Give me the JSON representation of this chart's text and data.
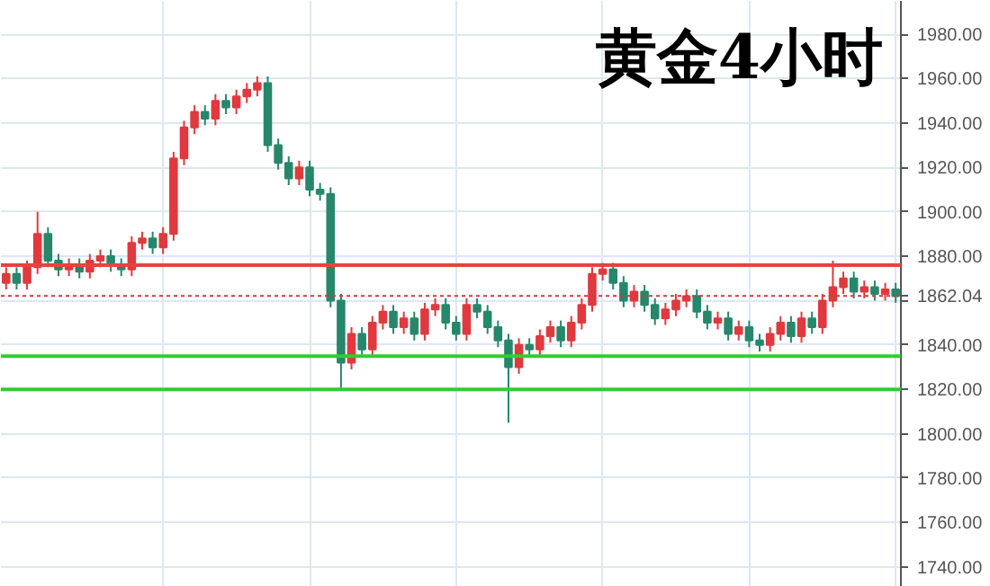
{
  "chart_data": {
    "type": "candlestick",
    "title": "黄金4小时",
    "categories": [
      null,
      null,
      null,
      null,
      null,
      null,
      null,
      null,
      null,
      null,
      null,
      null,
      null,
      null,
      null,
      null,
      null,
      null,
      null,
      null,
      null,
      null,
      null,
      null,
      null,
      null,
      null,
      null,
      null,
      null,
      null,
      null,
      null,
      null,
      null,
      null,
      null,
      null,
      null,
      null,
      null,
      null,
      null,
      null,
      null,
      null,
      null,
      null,
      null,
      null,
      null,
      null,
      null,
      null,
      null,
      null,
      null,
      null,
      null,
      null,
      null,
      null,
      null,
      null,
      null,
      null,
      null,
      null,
      null,
      null,
      null,
      null,
      null,
      null,
      null,
      null,
      null,
      null,
      null,
      null,
      null,
      null,
      null,
      null,
      null,
      null
    ],
    "ohlc": [
      [
        1868,
        1875,
        1865,
        1872
      ],
      [
        1872,
        1875,
        1865,
        1868
      ],
      [
        1868,
        1878,
        1865,
        1875
      ],
      [
        1875,
        1900,
        1872,
        1890
      ],
      [
        1890,
        1893,
        1875,
        1878
      ],
      [
        1878,
        1881,
        1871,
        1874
      ],
      [
        1874,
        1879,
        1871,
        1876
      ],
      [
        1876,
        1879,
        1870,
        1873
      ],
      [
        1873,
        1881,
        1870,
        1878
      ],
      [
        1878,
        1883,
        1875,
        1880
      ],
      [
        1880,
        1883,
        1873,
        1876
      ],
      [
        1876,
        1879,
        1871,
        1874
      ],
      [
        1874,
        1889,
        1871,
        1886
      ],
      [
        1886,
        1891,
        1883,
        1888
      ],
      [
        1888,
        1891,
        1881,
        1884
      ],
      [
        1884,
        1893,
        1881,
        1890
      ],
      [
        1890,
        1927,
        1887,
        1924
      ],
      [
        1924,
        1941,
        1921,
        1938
      ],
      [
        1938,
        1948,
        1935,
        1945
      ],
      [
        1945,
        1948,
        1939,
        1942
      ],
      [
        1942,
        1953,
        1939,
        1950
      ],
      [
        1950,
        1953,
        1944,
        1947
      ],
      [
        1947,
        1955,
        1944,
        1952
      ],
      [
        1952,
        1958,
        1949,
        1955
      ],
      [
        1955,
        1961,
        1952,
        1958
      ],
      [
        1958,
        1961,
        1927,
        1930
      ],
      [
        1930,
        1933,
        1919,
        1922
      ],
      [
        1922,
        1925,
        1912,
        1915
      ],
      [
        1915,
        1923,
        1912,
        1920
      ],
      [
        1920,
        1923,
        1907,
        1910
      ],
      [
        1910,
        1913,
        1905,
        1908
      ],
      [
        1908,
        1911,
        1857,
        1860
      ],
      [
        1860,
        1863,
        1820,
        1832
      ],
      [
        1832,
        1848,
        1829,
        1845
      ],
      [
        1845,
        1848,
        1835,
        1838
      ],
      [
        1838,
        1853,
        1835,
        1850
      ],
      [
        1850,
        1858,
        1847,
        1855
      ],
      [
        1855,
        1858,
        1845,
        1848
      ],
      [
        1848,
        1855,
        1845,
        1852
      ],
      [
        1852,
        1855,
        1842,
        1845
      ],
      [
        1845,
        1859,
        1842,
        1856
      ],
      [
        1856,
        1861,
        1853,
        1858
      ],
      [
        1858,
        1861,
        1847,
        1850
      ],
      [
        1850,
        1853,
        1842,
        1845
      ],
      [
        1845,
        1861,
        1842,
        1858
      ],
      [
        1858,
        1861,
        1852,
        1855
      ],
      [
        1855,
        1858,
        1845,
        1848
      ],
      [
        1848,
        1851,
        1839,
        1842
      ],
      [
        1842,
        1845,
        1805,
        1830
      ],
      [
        1830,
        1843,
        1827,
        1840
      ],
      [
        1840,
        1843,
        1835,
        1838
      ],
      [
        1838,
        1847,
        1835,
        1844
      ],
      [
        1844,
        1851,
        1841,
        1848
      ],
      [
        1848,
        1851,
        1839,
        1842
      ],
      [
        1842,
        1853,
        1839,
        1850
      ],
      [
        1850,
        1861,
        1847,
        1858
      ],
      [
        1858,
        1875,
        1855,
        1872
      ],
      [
        1872,
        1877,
        1869,
        1874
      ],
      [
        1874,
        1877,
        1865,
        1868
      ],
      [
        1868,
        1871,
        1857,
        1860
      ],
      [
        1860,
        1867,
        1857,
        1864
      ],
      [
        1864,
        1867,
        1855,
        1858
      ],
      [
        1858,
        1861,
        1849,
        1852
      ],
      [
        1852,
        1859,
        1849,
        1856
      ],
      [
        1856,
        1863,
        1853,
        1860
      ],
      [
        1860,
        1865,
        1857,
        1862
      ],
      [
        1862,
        1865,
        1852,
        1855
      ],
      [
        1855,
        1858,
        1847,
        1850
      ],
      [
        1850,
        1855,
        1847,
        1852
      ],
      [
        1852,
        1855,
        1842,
        1845
      ],
      [
        1845,
        1851,
        1842,
        1848
      ],
      [
        1848,
        1851,
        1839,
        1842
      ],
      [
        1842,
        1845,
        1837,
        1840
      ],
      [
        1840,
        1848,
        1837,
        1845
      ],
      [
        1845,
        1853,
        1842,
        1850
      ],
      [
        1850,
        1853,
        1841,
        1844
      ],
      [
        1844,
        1855,
        1841,
        1852
      ],
      [
        1852,
        1855,
        1845,
        1848
      ],
      [
        1848,
        1863,
        1845,
        1860
      ],
      [
        1860,
        1878,
        1857,
        1866
      ],
      [
        1866,
        1873,
        1863,
        1870
      ],
      [
        1870,
        1873,
        1861,
        1864
      ],
      [
        1864,
        1869,
        1861,
        1866
      ],
      [
        1866,
        1869,
        1860,
        1863
      ],
      [
        1863,
        1868,
        1860,
        1865
      ],
      [
        1865,
        1868,
        1859,
        1862
      ]
    ],
    "colors": [
      "#e0393e",
      "#26876b",
      "#e0393e",
      "#e0393e",
      "#26876b",
      "#26876b",
      "#e0393e",
      "#26876b",
      "#e0393e",
      "#e0393e",
      "#26876b",
      "#26876b",
      "#e0393e",
      "#e0393e",
      "#26876b",
      "#e0393e",
      "#e0393e",
      "#e0393e",
      "#e0393e",
      "#26876b",
      "#e0393e",
      "#26876b",
      "#e0393e",
      "#e0393e",
      "#e0393e",
      "#26876b",
      "#26876b",
      "#26876b",
      "#e0393e",
      "#26876b",
      "#26876b",
      "#26876b",
      "#26876b",
      "#e0393e",
      "#26876b",
      "#e0393e",
      "#e0393e",
      "#26876b",
      "#e0393e",
      "#26876b",
      "#e0393e",
      "#e0393e",
      "#26876b",
      "#26876b",
      "#e0393e",
      "#26876b",
      "#26876b",
      "#26876b",
      "#26876b",
      "#e0393e",
      "#26876b",
      "#e0393e",
      "#e0393e",
      "#26876b",
      "#e0393e",
      "#e0393e",
      "#e0393e",
      "#e0393e",
      "#26876b",
      "#26876b",
      "#e0393e",
      "#26876b",
      "#26876b",
      "#e0393e",
      "#e0393e",
      "#e0393e",
      "#26876b",
      "#26876b",
      "#e0393e",
      "#26876b",
      "#e0393e",
      "#26876b",
      "#26876b",
      "#e0393e",
      "#e0393e",
      "#26876b",
      "#e0393e",
      "#26876b",
      "#e0393e",
      "#e0393e",
      "#e0393e",
      "#26876b",
      "#e0393e",
      "#26876b",
      "#e0393e",
      "#26876b"
    ],
    "ref_lines": [
      {
        "axis": "y",
        "value": 1862.04,
        "label": "1862.04",
        "color": "#d0393c",
        "line_style": "dotted"
      },
      {
        "axis": "y",
        "value": 1876,
        "color": "#e8423f",
        "line_style": "solid"
      },
      {
        "axis": "y",
        "value": 1835,
        "color": "#33cc33",
        "line_style": "solid"
      },
      {
        "axis": "y",
        "value": 1820,
        "color": "#33cc33",
        "line_style": "solid"
      }
    ],
    "ylim": [
      1731,
      1995
    ],
    "yticks": [
      {
        "value": 1740,
        "label": "1740.00"
      },
      {
        "value": 1760,
        "label": "1760.00"
      },
      {
        "value": 1780,
        "label": "1780.00"
      },
      {
        "value": 1800,
        "label": "1800.00"
      },
      {
        "value": 1820,
        "label": "1820.00"
      },
      {
        "value": 1840,
        "label": "1840.00"
      },
      {
        "value": 1860,
        "label": null
      },
      {
        "value": 1880,
        "label": "1880.00"
      },
      {
        "value": 1900,
        "label": "1900.00"
      },
      {
        "value": 1920,
        "label": "1920.00"
      },
      {
        "value": 1940,
        "label": "1940.00"
      },
      {
        "value": 1960,
        "label": "1960.00"
      },
      {
        "value": 1980,
        "label": "1980.00"
      }
    ],
    "tick_labels": "y",
    "grid": true
  }
}
